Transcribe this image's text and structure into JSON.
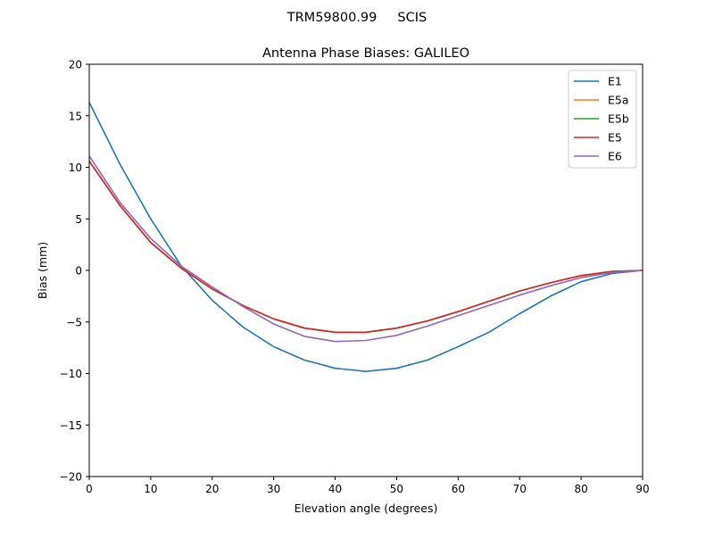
{
  "suptitle": "TRM59800.99     SCIS",
  "chart_data": {
    "type": "line",
    "title": "Antenna Phase Biases: GALILEO",
    "xlabel": "Elevation angle (degrees)",
    "ylabel": "Bias (mm)",
    "xlim": [
      0,
      90
    ],
    "ylim": [
      -20,
      20
    ],
    "xticks": [
      "0",
      "10",
      "20",
      "30",
      "40",
      "50",
      "60",
      "70",
      "80",
      "90"
    ],
    "yticks": [
      "−20",
      "−15",
      "−10",
      "−5",
      "0",
      "5",
      "10",
      "15",
      "20"
    ],
    "grid": false,
    "legend_position": "top-right",
    "x": [
      0,
      5,
      10,
      15,
      20,
      25,
      30,
      35,
      40,
      45,
      50,
      55,
      60,
      65,
      70,
      75,
      80,
      85,
      90
    ],
    "series": [
      {
        "name": "E1",
        "color": "#1f77b4",
        "values": [
          16.3,
          10.3,
          5.0,
          0.4,
          -2.9,
          -5.5,
          -7.4,
          -8.7,
          -9.5,
          -9.8,
          -9.5,
          -8.7,
          -7.4,
          -6.0,
          -4.2,
          -2.5,
          -1.1,
          -0.3,
          0
        ]
      },
      {
        "name": "E5a",
        "color": "#ff7f0e",
        "values": [
          10.6,
          6.3,
          2.7,
          0.2,
          -1.8,
          -3.4,
          -4.7,
          -5.6,
          -6.0,
          -6.0,
          -5.6,
          -4.9,
          -4.0,
          -3.0,
          -2.0,
          -1.2,
          -0.5,
          -0.1,
          0
        ]
      },
      {
        "name": "E5b",
        "color": "#2ca02c",
        "values": [
          10.6,
          6.3,
          2.7,
          0.2,
          -1.8,
          -3.4,
          -4.7,
          -5.6,
          -6.0,
          -6.0,
          -5.6,
          -4.9,
          -4.0,
          -3.0,
          -2.0,
          -1.2,
          -0.5,
          -0.1,
          0
        ]
      },
      {
        "name": "E5",
        "color": "#d62728",
        "values": [
          10.6,
          6.3,
          2.7,
          0.2,
          -1.8,
          -3.4,
          -4.7,
          -5.6,
          -6.0,
          -6.0,
          -5.6,
          -4.9,
          -4.0,
          -3.0,
          -2.0,
          -1.2,
          -0.5,
          -0.1,
          0
        ]
      },
      {
        "name": "E6",
        "color": "#9467bd",
        "values": [
          11.1,
          6.6,
          3.1,
          0.4,
          -1.6,
          -3.5,
          -5.2,
          -6.4,
          -6.9,
          -6.8,
          -6.3,
          -5.4,
          -4.4,
          -3.4,
          -2.4,
          -1.5,
          -0.7,
          -0.2,
          0
        ]
      }
    ]
  }
}
